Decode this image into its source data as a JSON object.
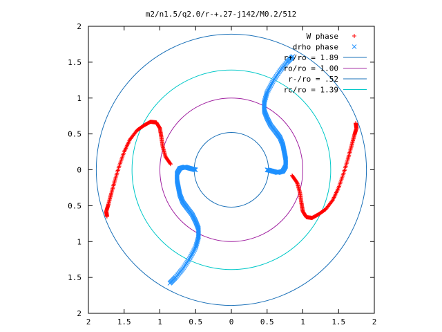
{
  "chart_data": {
    "type": "scatter",
    "title": "m2/n1.5/q2.0/r-+.27-j142/M0.2/512",
    "xlim": [
      -2,
      2
    ],
    "ylim": [
      -2,
      2
    ],
    "x_tick_values": [
      -2,
      -1.5,
      -1,
      -0.5,
      0,
      0.5,
      1,
      1.5,
      2
    ],
    "y_tick_values": [
      -2,
      -1.5,
      -1,
      -0.5,
      0,
      0.5,
      1,
      1.5,
      2
    ],
    "x_tick_labels": [
      "2",
      "1.5",
      "1",
      "0.5",
      "0",
      "0.5",
      "1",
      "1.5",
      "2"
    ],
    "y_tick_labels": [
      "2",
      "1.5",
      "1",
      "0.5",
      "0",
      "0.5",
      "1",
      "1.5",
      "2"
    ],
    "grid": false,
    "legend_position": "top-right",
    "colors": {
      "w_phase": "#ff0000",
      "drho_phase": "#1e90ff",
      "r_plus": "#1a70b8",
      "ro": "#a020a0",
      "r_minus": "#1a70b8",
      "rc": "#00c8c8"
    },
    "series": [
      {
        "name": "W phase",
        "marker": "plus",
        "color": "#ff0000",
        "points": [
          [
            0.85,
            -0.08
          ],
          [
            0.92,
            -0.18
          ],
          [
            0.96,
            -0.32
          ],
          [
            0.98,
            -0.46
          ],
          [
            1.0,
            -0.58
          ],
          [
            1.05,
            -0.66
          ],
          [
            1.13,
            -0.67
          ],
          [
            1.22,
            -0.62
          ],
          [
            1.32,
            -0.55
          ],
          [
            1.42,
            -0.42
          ],
          [
            1.5,
            -0.25
          ],
          [
            1.57,
            -0.05
          ],
          [
            1.63,
            0.15
          ],
          [
            1.68,
            0.33
          ],
          [
            1.72,
            0.48
          ],
          [
            1.75,
            0.58
          ],
          [
            1.74,
            0.65
          ],
          [
            -0.85,
            0.08
          ],
          [
            -0.92,
            0.18
          ],
          [
            -0.96,
            0.32
          ],
          [
            -0.98,
            0.46
          ],
          [
            -1.0,
            0.58
          ],
          [
            -1.05,
            0.66
          ],
          [
            -1.13,
            0.67
          ],
          [
            -1.22,
            0.62
          ],
          [
            -1.32,
            0.55
          ],
          [
            -1.42,
            0.42
          ],
          [
            -1.5,
            0.25
          ],
          [
            -1.57,
            0.05
          ],
          [
            -1.63,
            -0.15
          ],
          [
            -1.68,
            -0.33
          ],
          [
            -1.72,
            -0.48
          ],
          [
            -1.75,
            -0.58
          ],
          [
            -1.74,
            -0.65
          ]
        ]
      },
      {
        "name": "drho phase",
        "marker": "x",
        "color": "#1e90ff",
        "points": [
          [
            0.5,
            0.0
          ],
          [
            0.58,
            -0.02
          ],
          [
            0.65,
            -0.04
          ],
          [
            0.72,
            -0.02
          ],
          [
            0.76,
            0.05
          ],
          [
            0.76,
            0.15
          ],
          [
            0.74,
            0.25
          ],
          [
            0.72,
            0.35
          ],
          [
            0.68,
            0.45
          ],
          [
            0.62,
            0.53
          ],
          [
            0.55,
            0.62
          ],
          [
            0.5,
            0.72
          ],
          [
            0.46,
            0.82
          ],
          [
            0.46,
            0.94
          ],
          [
            0.5,
            1.08
          ],
          [
            0.58,
            1.23
          ],
          [
            0.68,
            1.38
          ],
          [
            0.78,
            1.5
          ],
          [
            0.86,
            1.58
          ],
          [
            -0.5,
            0.0
          ],
          [
            -0.58,
            0.02
          ],
          [
            -0.65,
            0.04
          ],
          [
            -0.72,
            0.02
          ],
          [
            -0.76,
            -0.05
          ],
          [
            -0.76,
            -0.15
          ],
          [
            -0.74,
            -0.25
          ],
          [
            -0.72,
            -0.35
          ],
          [
            -0.68,
            -0.45
          ],
          [
            -0.62,
            -0.53
          ],
          [
            -0.55,
            -0.62
          ],
          [
            -0.5,
            -0.72
          ],
          [
            -0.46,
            -0.82
          ],
          [
            -0.46,
            -0.94
          ],
          [
            -0.5,
            -1.08
          ],
          [
            -0.58,
            -1.23
          ],
          [
            -0.68,
            -1.38
          ],
          [
            -0.78,
            -1.5
          ],
          [
            -0.86,
            -1.58
          ]
        ]
      },
      {
        "name": "r+/ro = 1.89",
        "type": "circle",
        "radius": 1.89,
        "color": "#1a70b8"
      },
      {
        "name": "ro/ro = 1.00",
        "type": "circle",
        "radius": 1.0,
        "color": "#a020a0"
      },
      {
        "name": "r-/ro = .52",
        "type": "circle",
        "radius": 0.52,
        "color": "#1a70b8"
      },
      {
        "name": "rc/ro = 1.39",
        "type": "circle",
        "radius": 1.39,
        "color": "#00c8c8"
      }
    ]
  }
}
